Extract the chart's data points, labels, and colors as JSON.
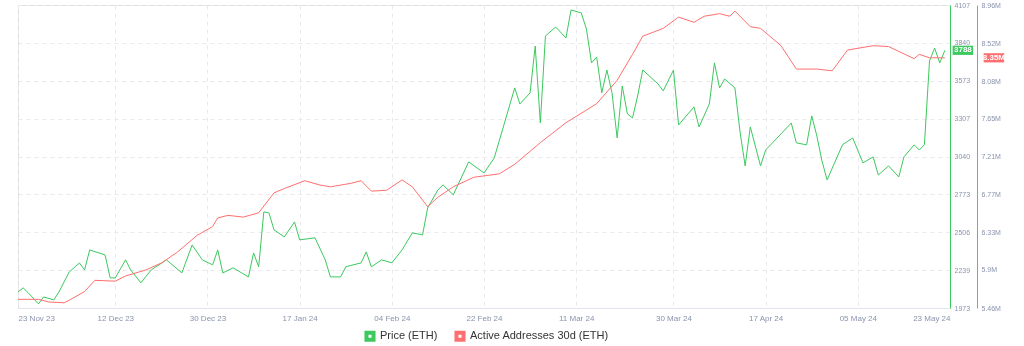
{
  "chart_data": {
    "type": "line",
    "x": [
      "2023-11-23",
      "2023-11-24",
      "2023-11-25",
      "2023-11-27",
      "2023-11-28",
      "2023-11-30",
      "2023-12-01",
      "2023-12-03",
      "2023-12-05",
      "2023-12-06",
      "2023-12-07",
      "2023-12-10",
      "2023-12-11",
      "2023-12-12",
      "2023-12-14",
      "2023-12-15",
      "2023-12-17",
      "2023-12-19",
      "2023-12-22",
      "2023-12-25",
      "2023-12-27",
      "2023-12-29",
      "2023-12-31",
      "2024-01-01",
      "2024-01-02",
      "2024-01-04",
      "2024-01-07",
      "2024-01-08",
      "2024-01-09",
      "2024-01-10",
      "2024-01-11",
      "2024-01-12",
      "2024-01-14",
      "2024-01-16",
      "2024-01-17",
      "2024-01-20",
      "2024-01-22",
      "2024-01-23",
      "2024-01-25",
      "2024-01-26",
      "2024-01-29",
      "2024-01-30",
      "2024-01-31",
      "2024-02-02",
      "2024-02-04",
      "2024-02-06",
      "2024-02-08",
      "2024-02-10",
      "2024-02-11",
      "2024-02-13",
      "2024-02-14",
      "2024-02-16",
      "2024-02-18",
      "2024-02-19",
      "2024-02-22",
      "2024-02-24",
      "2024-02-28",
      "2024-02-29",
      "2024-03-02",
      "2024-03-03",
      "2024-03-04",
      "2024-03-05",
      "2024-03-07",
      "2024-03-09",
      "2024-03-10",
      "2024-03-12",
      "2024-03-13",
      "2024-03-14",
      "2024-03-15",
      "2024-03-16",
      "2024-03-17",
      "2024-03-18",
      "2024-03-19",
      "2024-03-20",
      "2024-03-21",
      "2024-03-22",
      "2024-03-23",
      "2024-03-24",
      "2024-03-27",
      "2024-03-28",
      "2024-03-30",
      "2024-03-31",
      "2024-04-03",
      "2024-04-04",
      "2024-04-06",
      "2024-04-07",
      "2024-04-08",
      "2024-04-09",
      "2024-04-11",
      "2024-04-12",
      "2024-04-13",
      "2024-04-14",
      "2024-04-16",
      "2024-04-17",
      "2024-04-20",
      "2024-04-22",
      "2024-04-23",
      "2024-04-25",
      "2024-04-26",
      "2024-04-27",
      "2024-04-28",
      "2024-04-29",
      "2024-05-02",
      "2024-05-04",
      "2024-05-06",
      "2024-05-08",
      "2024-05-09",
      "2024-05-11",
      "2024-05-13",
      "2024-05-14",
      "2024-05-16",
      "2024-05-17",
      "2024-05-18",
      "2024-05-19",
      "2024-05-20",
      "2024-05-21",
      "2024-05-22"
    ],
    "series": [
      {
        "name": "Price (ETH)",
        "color": "#3cc95e",
        "values": [
          2086,
          2115,
          2080,
          2002,
          2051,
          2030,
          2086,
          2227,
          2290,
          2241,
          2382,
          2347,
          2185,
          2185,
          2312,
          2241,
          2150,
          2241,
          2312,
          2220,
          2417,
          2312,
          2277,
          2382,
          2220,
          2256,
          2192,
          2361,
          2263,
          2650,
          2643,
          2523,
          2474,
          2579,
          2453,
          2467,
          2312,
          2192,
          2192,
          2263,
          2291,
          2368,
          2263,
          2312,
          2291,
          2382,
          2502,
          2488,
          2678,
          2805,
          2840,
          2770,
          2924,
          3002,
          2924,
          3030,
          3523,
          3410,
          3488,
          3818,
          3276,
          3889,
          3952,
          3875,
          4072,
          4051,
          3938,
          3699,
          3741,
          3488,
          3649,
          3488,
          3171,
          3537,
          3340,
          3312,
          3466,
          3649,
          3551,
          3502,
          3649,
          3262,
          3389,
          3248,
          3410,
          3699,
          3523,
          3586,
          3523,
          3213,
          2974,
          3248,
          2974,
          3086,
          3199,
          3276,
          3136,
          3122,
          3326,
          3185,
          3009,
          2875,
          3122,
          3171,
          2995,
          3037,
          2910,
          2974,
          2896,
          3037,
          3122,
          3086,
          3122,
          3713,
          3804,
          3699,
          3788
        ]
      },
      {
        "name": "Active Addresses 30d (ETH)",
        "color": "#ff6f6f",
        "axis": "y2",
        "x": [
          "2023-11-23",
          "2023-11-27",
          "2023-11-29",
          "2023-12-02",
          "2023-12-03",
          "2023-12-06",
          "2023-12-08",
          "2023-12-12",
          "2023-12-14",
          "2023-12-18",
          "2023-12-21",
          "2023-12-24",
          "2023-12-28",
          "2023-12-31",
          "2024-01-01",
          "2024-01-03",
          "2024-01-06",
          "2024-01-09",
          "2024-01-12",
          "2024-01-14",
          "2024-01-18",
          "2024-01-21",
          "2024-01-23",
          "2024-01-27",
          "2024-01-29",
          "2024-01-31",
          "2024-02-03",
          "2024-02-06",
          "2024-02-08",
          "2024-02-11",
          "2024-02-13",
          "2024-02-16",
          "2024-02-20",
          "2024-02-25",
          "2024-02-28",
          "2024-03-04",
          "2024-03-09",
          "2024-03-15",
          "2024-03-19",
          "2024-03-22",
          "2024-03-24",
          "2024-03-28",
          "2024-03-31",
          "2024-04-03",
          "2024-04-05",
          "2024-04-08",
          "2024-04-10",
          "2024-04-11",
          "2024-04-14",
          "2024-04-16",
          "2024-04-20",
          "2024-04-23",
          "2024-04-27",
          "2024-04-30",
          "2024-05-03",
          "2024-05-08",
          "2024-05-11",
          "2024-05-16",
          "2024-05-17",
          "2024-05-19",
          "2024-05-22"
        ],
        "values": [
          5560000,
          5560000,
          5530000,
          5520000,
          5550000,
          5650000,
          5780000,
          5770000,
          5830000,
          5900000,
          5980000,
          6100000,
          6300000,
          6400000,
          6500000,
          6530000,
          6510000,
          6560000,
          6790000,
          6840000,
          6930000,
          6880000,
          6860000,
          6900000,
          6930000,
          6810000,
          6820000,
          6940000,
          6860000,
          6630000,
          6740000,
          6860000,
          6970000,
          7010000,
          7120000,
          7370000,
          7600000,
          7820000,
          8090000,
          8390000,
          8600000,
          8690000,
          8820000,
          8760000,
          8830000,
          8860000,
          8830000,
          8890000,
          8710000,
          8690000,
          8490000,
          8220000,
          8220000,
          8200000,
          8440000,
          8490000,
          8480000,
          8340000,
          8390000,
          8350000,
          8350000
        ]
      }
    ],
    "xlim": [
      "2023-11-23",
      "2024-05-23"
    ],
    "xticks": [
      {
        "value": "2023-11-23",
        "label": "23 Nov 23"
      },
      {
        "value": "2023-12-12",
        "label": "12 Dec 23"
      },
      {
        "value": "2023-12-30",
        "label": "30 Dec 23"
      },
      {
        "value": "2024-01-17",
        "label": "17 Jan 24"
      },
      {
        "value": "2024-02-04",
        "label": "04 Feb 24"
      },
      {
        "value": "2024-02-22",
        "label": "22 Feb 24"
      },
      {
        "value": "2024-03-11",
        "label": "11 Mar 24"
      },
      {
        "value": "2024-03-30",
        "label": "30 Mar 24"
      },
      {
        "value": "2024-04-17",
        "label": "17 Apr 24"
      },
      {
        "value": "2024-05-05",
        "label": "05 May 24"
      },
      {
        "value": "2024-05-23",
        "label": "23 May 24"
      }
    ],
    "ylim": [
      1973,
      4107
    ],
    "yticks": [
      1973,
      2239,
      2506,
      2773,
      3040,
      3307,
      3573,
      3840,
      4107
    ],
    "y2lim": [
      5460000,
      8960000
    ],
    "y2ticks": [
      {
        "value": 5460000,
        "label": "5.46M"
      },
      {
        "value": 5900000,
        "label": "5.9M"
      },
      {
        "value": 6330000,
        "label": "6.33M"
      },
      {
        "value": 6770000,
        "label": "6.77M"
      },
      {
        "value": 7210000,
        "label": "7.21M"
      },
      {
        "value": 7650000,
        "label": "7.65M"
      },
      {
        "value": 8080000,
        "label": "8.08M"
      },
      {
        "value": 8520000,
        "label": "8.52M"
      },
      {
        "value": 8960000,
        "label": "8.96M"
      }
    ],
    "annotations": [
      {
        "text": "3788",
        "x": "2024-05-22",
        "y": 3788
      },
      "8.35M"
    ],
    "grid": true,
    "legend": "bottom",
    "marker": "none",
    "line_style": "solid"
  }
}
